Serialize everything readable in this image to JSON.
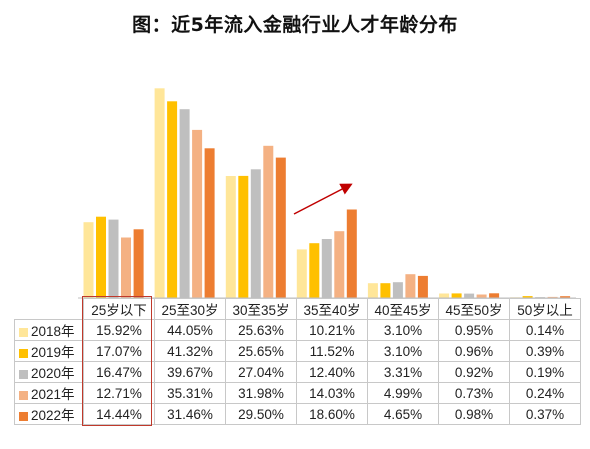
{
  "page_title": "图：近5年流入金融行业人才年龄分布",
  "chart_data": {
    "type": "bar",
    "title": "图：近5年流入金融行业人才年龄分布",
    "categories": [
      "25岁以下",
      "25至30岁",
      "30至35岁",
      "35至40岁",
      "40至45岁",
      "45至50岁",
      "50岁以上"
    ],
    "series": [
      {
        "name": "2018年",
        "color": "#ffe699",
        "values": [
          15.92,
          44.05,
          25.63,
          10.21,
          3.1,
          0.95,
          0.14
        ],
        "labels": [
          "15.92%",
          "44.05%",
          "25.63%",
          "10.21%",
          "3.10%",
          "0.95%",
          "0.14%"
        ]
      },
      {
        "name": "2019年",
        "color": "#ffc000",
        "values": [
          17.07,
          41.32,
          25.65,
          11.52,
          3.1,
          0.96,
          0.39
        ],
        "labels": [
          "17.07%",
          "41.32%",
          "25.65%",
          "11.52%",
          "3.10%",
          "0.96%",
          "0.39%"
        ]
      },
      {
        "name": "2020年",
        "color": "#bfbfbf",
        "values": [
          16.47,
          39.67,
          27.04,
          12.4,
          3.31,
          0.92,
          0.19
        ],
        "labels": [
          "16.47%",
          "39.67%",
          "27.04%",
          "12.40%",
          "3.31%",
          "0.92%",
          "0.19%"
        ]
      },
      {
        "name": "2021年",
        "color": "#f4b183",
        "values": [
          12.71,
          35.31,
          31.98,
          14.03,
          4.99,
          0.73,
          0.24
        ],
        "labels": [
          "12.71%",
          "35.31%",
          "31.98%",
          "14.03%",
          "4.99%",
          "0.73%",
          "0.24%"
        ]
      },
      {
        "name": "2022年",
        "color": "#ed7d31",
        "values": [
          14.44,
          31.46,
          29.5,
          18.6,
          4.65,
          0.98,
          0.37
        ],
        "labels": [
          "14.44%",
          "31.46%",
          "29.50%",
          "18.60%",
          "4.65%",
          "0.98%",
          "0.37%"
        ]
      }
    ],
    "ylim": [
      0,
      50
    ],
    "grid": false,
    "legend": "table-below",
    "annotations": {
      "arrow_color": "#c00000",
      "highlight_color": "#c0392b",
      "highlight_category": "25岁以下"
    }
  }
}
